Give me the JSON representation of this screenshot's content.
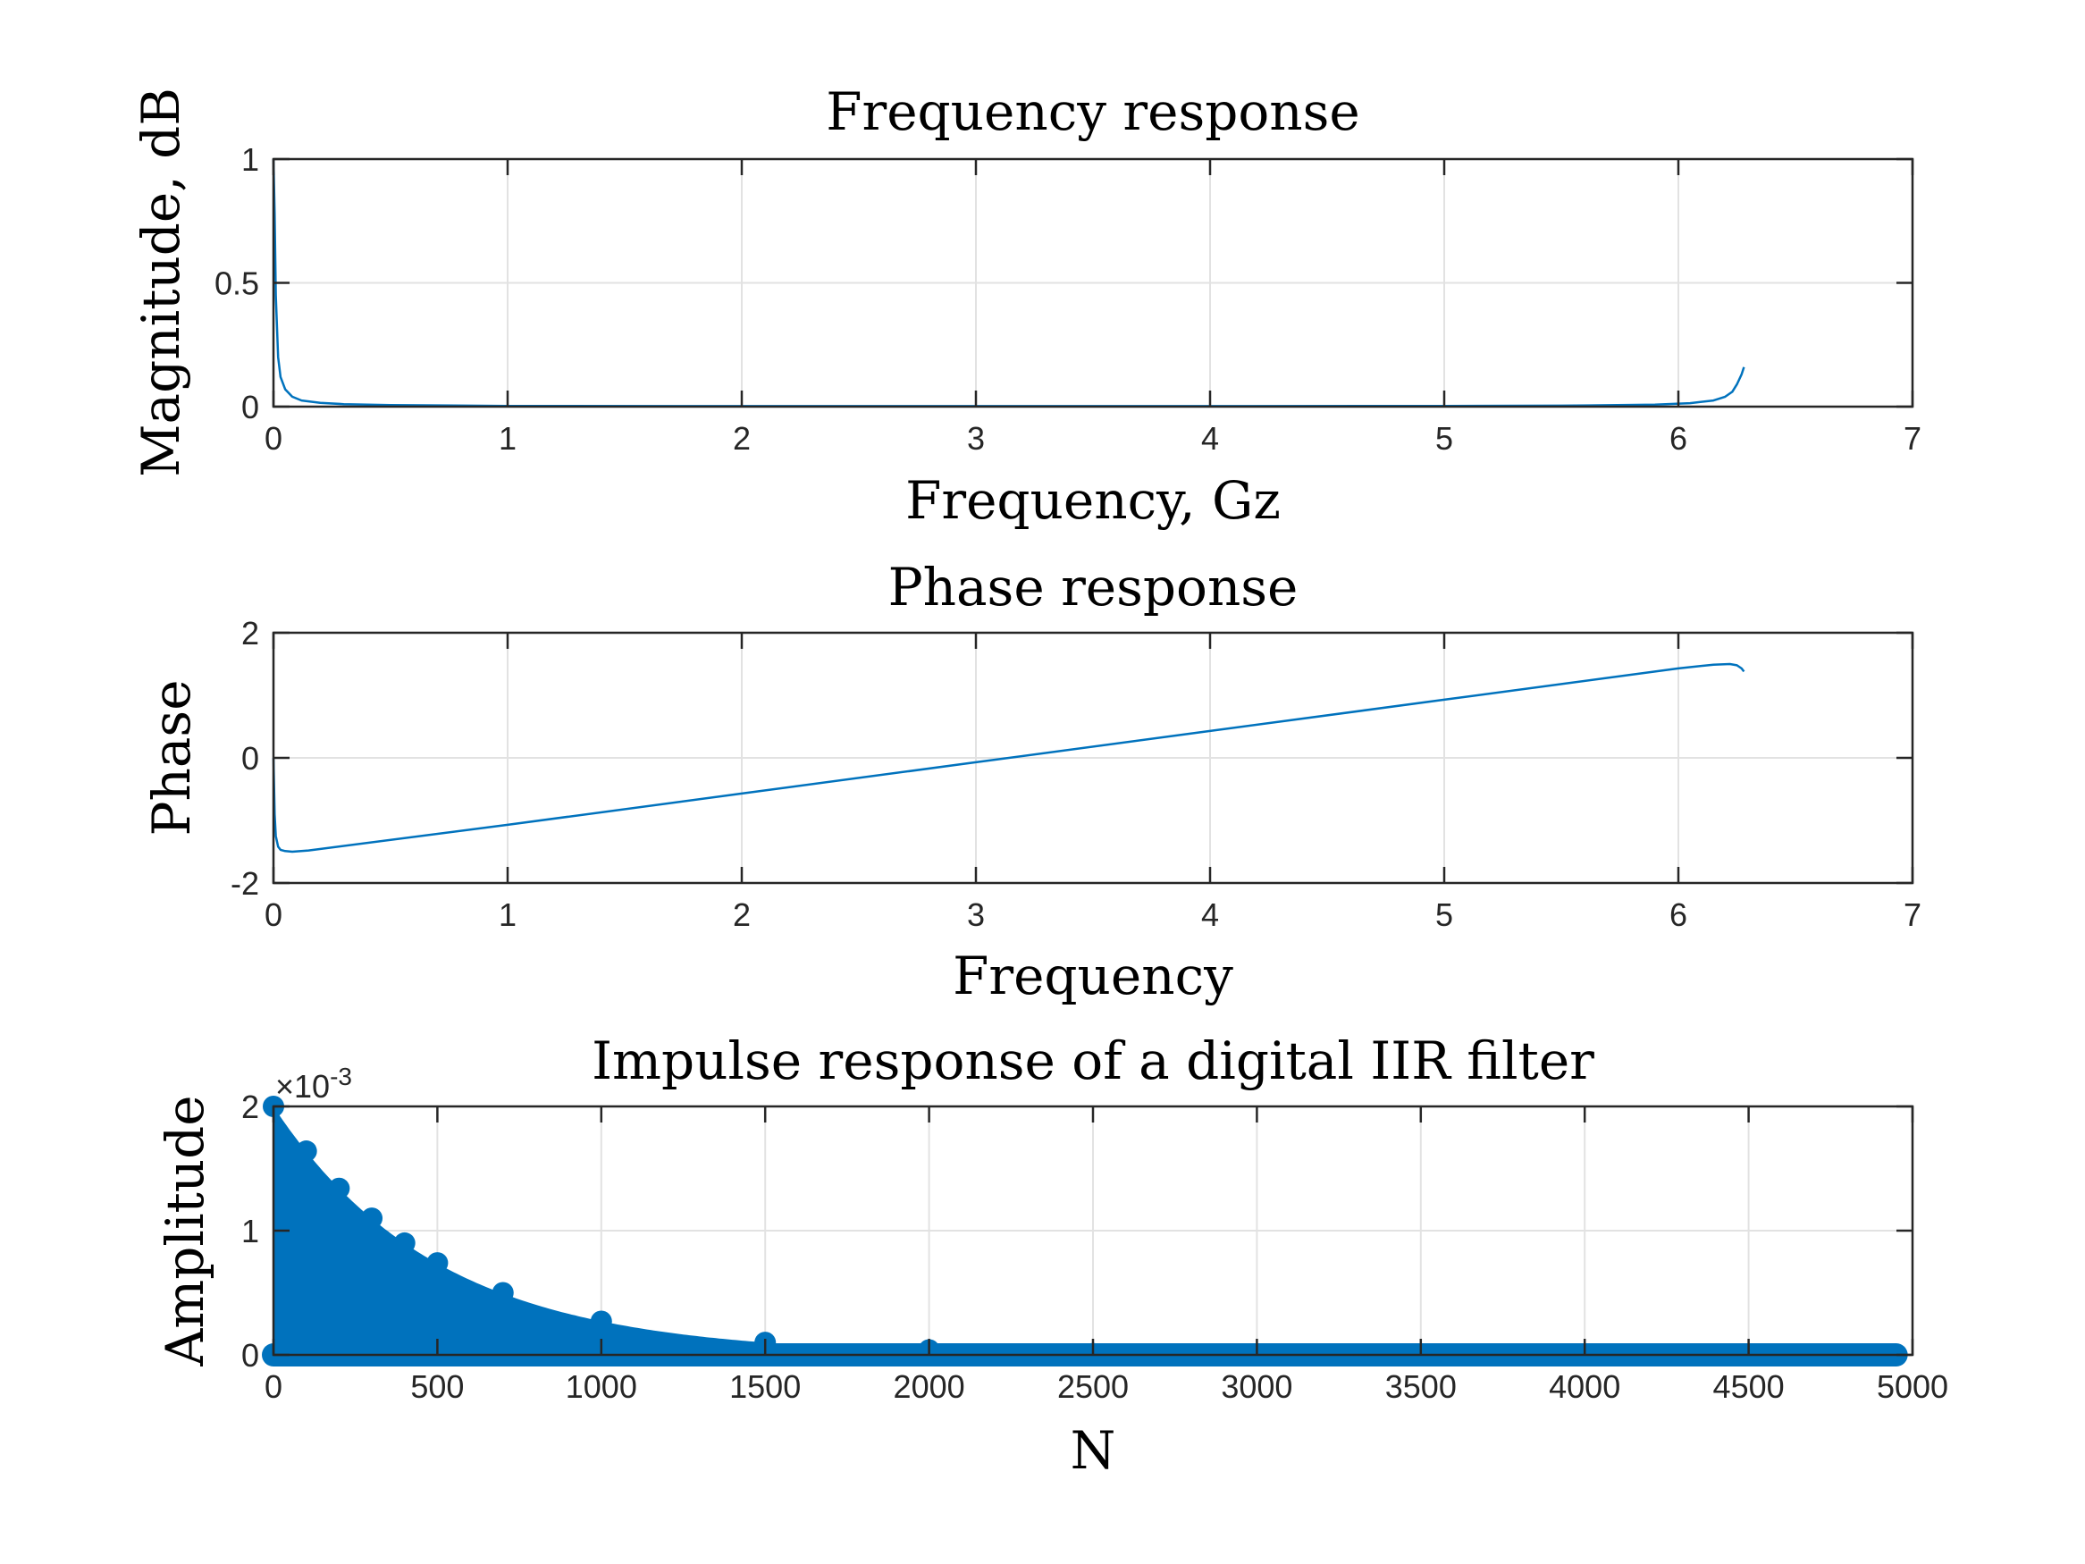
{
  "colors": {
    "series": "#0072BD",
    "axis": "#262626",
    "grid": "#e2e2e2"
  },
  "chart_data": [
    {
      "type": "line",
      "title": "Frequency response",
      "xlabel": "Frequency, Gz",
      "ylabel": "Magnitude, dB",
      "xlim": [
        0,
        7
      ],
      "ylim": [
        0,
        1
      ],
      "xticks": [
        0,
        1,
        2,
        3,
        4,
        5,
        6,
        7
      ],
      "yticks": [
        0,
        0.5,
        1
      ],
      "xtick_labels": [
        "0",
        "1",
        "2",
        "3",
        "4",
        "5",
        "6",
        "7"
      ],
      "ytick_labels": [
        "0",
        "0.5",
        "1"
      ],
      "grid": true,
      "series": [
        {
          "x": [
            0,
            0.005,
            0.01,
            0.02,
            0.03,
            0.05,
            0.08,
            0.12,
            0.2,
            0.3,
            0.5,
            1,
            2,
            3,
            4,
            5,
            5.5,
            5.9,
            6.05,
            6.15,
            6.2,
            6.23,
            6.25,
            6.27,
            6.28
          ],
          "y": [
            1,
            0.78,
            0.45,
            0.2,
            0.12,
            0.07,
            0.04,
            0.025,
            0.015,
            0.01,
            0.006,
            0.003,
            0.002,
            0.002,
            0.002,
            0.003,
            0.004,
            0.008,
            0.014,
            0.025,
            0.04,
            0.06,
            0.09,
            0.13,
            0.16
          ]
        }
      ]
    },
    {
      "type": "line",
      "title": "Phase response",
      "xlabel": "Frequency",
      "ylabel": "Phase",
      "xlim": [
        0,
        7
      ],
      "ylim": [
        -2,
        2
      ],
      "xticks": [
        0,
        1,
        2,
        3,
        4,
        5,
        6,
        7
      ],
      "yticks": [
        -2,
        0,
        2
      ],
      "xtick_labels": [
        "0",
        "1",
        "2",
        "3",
        "4",
        "5",
        "6",
        "7"
      ],
      "ytick_labels": [
        "-2",
        "0",
        "2"
      ],
      "grid": true,
      "series": [
        {
          "x": [
            0,
            0.005,
            0.01,
            0.02,
            0.03,
            0.05,
            0.08,
            0.15,
            1,
            2,
            3,
            4,
            5,
            6,
            6.15,
            6.22,
            6.25,
            6.27,
            6.28
          ],
          "y": [
            0,
            -0.9,
            -1.25,
            -1.42,
            -1.47,
            -1.49,
            -1.5,
            -1.48,
            -1.07,
            -0.57,
            -0.07,
            0.43,
            0.93,
            1.43,
            1.49,
            1.5,
            1.48,
            1.43,
            1.38
          ]
        }
      ]
    },
    {
      "type": "area",
      "title": "Impulse response of a digital IIR filter",
      "xlabel": "N",
      "ylabel": "Amplitude",
      "xlim": [
        0,
        5000
      ],
      "ylim": [
        0,
        0.002
      ],
      "xticks": [
        0,
        500,
        1000,
        1500,
        2000,
        2500,
        3000,
        3500,
        4000,
        4500,
        5000
      ],
      "yticks": [
        0,
        0.001,
        0.002
      ],
      "xtick_labels": [
        "0",
        "500",
        "1000",
        "1500",
        "2000",
        "2500",
        "3000",
        "3500",
        "4000",
        "4500",
        "5000"
      ],
      "ytick_labels": [
        "0",
        "1",
        "2"
      ],
      "y_exponent_label": "×10",
      "y_exponent_power": "-3",
      "grid": true,
      "decay_constant": 500,
      "series": [
        {
          "x": [
            0,
            100,
            200,
            300,
            400,
            500,
            700,
            1000,
            1500,
            2000,
            2500,
            3000,
            3500,
            4000,
            4500,
            4950
          ],
          "y": [
            0.002,
            0.00164,
            0.00134,
            0.0011,
            0.0009,
            0.00074,
            0.0005,
            0.00027,
            0.0001,
            4e-05,
            1e-05,
            3e-06,
            5e-07,
            0,
            0,
            0
          ],
          "marker": "filled-circle"
        }
      ]
    }
  ]
}
